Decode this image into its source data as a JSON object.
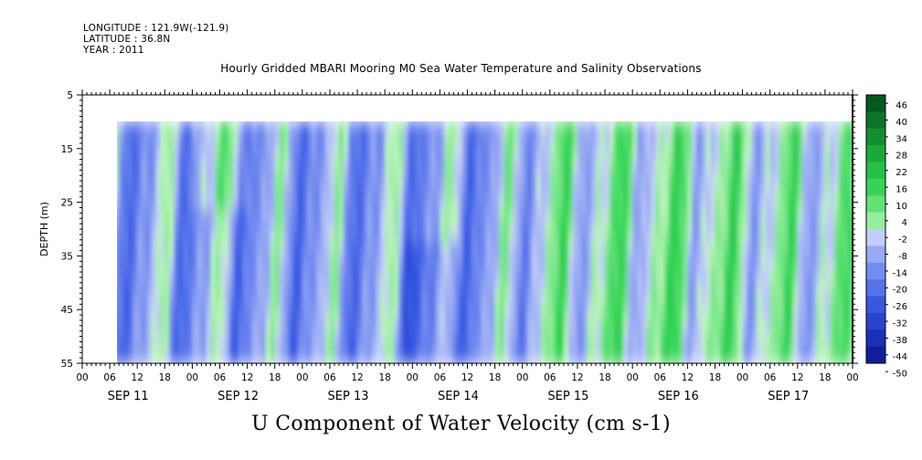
{
  "header": {
    "longitude": "LONGITUDE : 121.9W(-121.9)",
    "latitude": "LATITUDE : 36.8N",
    "year": "YEAR : 2011"
  },
  "title": "Hourly Gridded MBARI Mooring M0 Sea Water Temperature and Salinity Observations",
  "variable_title": "U Component of Water Velocity (cm s-1)",
  "chart_data": {
    "type": "heatmap",
    "title": "Hourly Gridded MBARI Mooring M0 Sea Water Temperature and Salinity Observations",
    "ylabel": "DEPTH (m)",
    "xlabel": "",
    "y_axis": {
      "range": [
        5,
        55
      ],
      "inverted": true,
      "ticks": [
        5,
        15,
        25,
        35,
        45,
        55
      ]
    },
    "x_axis": {
      "range_hours": [
        0,
        168
      ],
      "hour_tick_labels": [
        "00",
        "06",
        "12",
        "18",
        "00",
        "06",
        "12",
        "18",
        "00",
        "06",
        "12",
        "18",
        "00",
        "06",
        "12",
        "18",
        "00",
        "06",
        "12",
        "18",
        "00",
        "06",
        "12",
        "18",
        "00",
        "06",
        "12",
        "18",
        "00"
      ],
      "day_labels": [
        "SEP 11",
        "SEP 12",
        "SEP 13",
        "SEP 14",
        "SEP 15",
        "SEP 16",
        "SEP 17"
      ]
    },
    "data_extent": {
      "start": "SEP 11 07:00",
      "end": "SEP 17 24:00",
      "depth_top_m": 10,
      "depth_bottom_m": 55
    },
    "colorbar": {
      "labels": [
        "46",
        "40",
        "34",
        "28",
        "22",
        "16",
        "10",
        "4",
        "-2",
        "-8",
        "-14",
        "-20",
        "-26",
        "-32",
        "-38",
        "-44",
        "-50"
      ],
      "range": [
        -50,
        50
      ],
      "step": 6
    },
    "field_summary": [
      {
        "day": "SEP 11",
        "depth_range_m": [
          10,
          55
        ],
        "approx_u_cm_s": -10,
        "note": "mostly blue with green streaks near 08-10 h and 18-22 h"
      },
      {
        "day": "SEP 12",
        "depth_range_m": [
          10,
          30
        ],
        "approx_u_cm_s": 12,
        "note": "green patch near surface around 07-09 h"
      },
      {
        "day": "SEP 13",
        "depth_range_m": [
          10,
          55
        ],
        "approx_u_cm_s": -14,
        "note": "predominantly blue, weak green near 08 h"
      },
      {
        "day": "SEP 14",
        "depth_range_m": [
          30,
          55
        ],
        "approx_u_cm_s": -22,
        "note": "strong blue at depth around 02-06 h"
      },
      {
        "day": "SEP 15",
        "depth_range_m": [
          10,
          55
        ],
        "approx_u_cm_s": 6,
        "note": "green bands appear 04-08 h and 18-24 h"
      },
      {
        "day": "SEP 16",
        "depth_range_m": [
          20,
          55
        ],
        "approx_u_cm_s": 14,
        "note": "extensive green, strongest at mid depth 10-18 h"
      },
      {
        "day": "SEP 17",
        "depth_range_m": [
          10,
          55
        ],
        "approx_u_cm_s": 8,
        "note": "mixed green and pale blue"
      }
    ]
  }
}
